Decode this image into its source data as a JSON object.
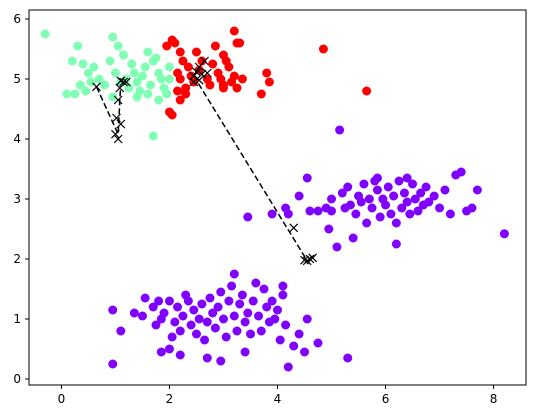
{
  "chart_data": {
    "type": "scatter",
    "title": "",
    "xlabel": "",
    "ylabel": "",
    "xlim": [
      -0.6,
      8.6
    ],
    "ylim": [
      -0.1,
      6.15
    ],
    "x_ticks": [
      0,
      2,
      4,
      6,
      8
    ],
    "y_ticks": [
      0,
      1,
      2,
      3,
      4,
      5,
      6
    ],
    "x_tick_labels": [
      "0",
      "2",
      "4",
      "6",
      "8"
    ],
    "y_tick_labels": [
      "0",
      "1",
      "2",
      "3",
      "4",
      "5",
      "6"
    ],
    "grid": false,
    "legend": "none",
    "series": [
      {
        "color": "#80ffb4",
        "marker": "circle",
        "points": [
          [
            -0.3,
            5.75
          ],
          [
            0.3,
            5.55
          ],
          [
            0.2,
            5.3
          ],
          [
            0.4,
            5.25
          ],
          [
            0.5,
            5.1
          ],
          [
            0.35,
            4.9
          ],
          [
            0.45,
            4.8
          ],
          [
            0.1,
            4.75
          ],
          [
            0.25,
            4.75
          ],
          [
            0.55,
            4.95
          ],
          [
            0.6,
            5.2
          ],
          [
            0.7,
            5.0
          ],
          [
            0.8,
            4.9
          ],
          [
            0.9,
            5.3
          ],
          [
            0.95,
            5.7
          ],
          [
            1.05,
            5.55
          ],
          [
            1.0,
            5.1
          ],
          [
            1.1,
            4.95
          ],
          [
            1.2,
            5.0
          ],
          [
            1.3,
            5.25
          ],
          [
            1.35,
            5.1
          ],
          [
            1.4,
            4.95
          ],
          [
            1.45,
            4.8
          ],
          [
            1.5,
            5.05
          ],
          [
            1.55,
            5.2
          ],
          [
            1.6,
            4.75
          ],
          [
            1.65,
            4.9
          ],
          [
            1.7,
            5.3
          ],
          [
            1.75,
            5.35
          ],
          [
            1.8,
            5.1
          ],
          [
            1.85,
            5.0
          ],
          [
            1.9,
            4.85
          ],
          [
            1.95,
            4.75
          ],
          [
            2.0,
            5.2
          ],
          [
            1.7,
            4.05
          ],
          [
            1.4,
            4.7
          ],
          [
            1.25,
            4.85
          ],
          [
            0.95,
            4.7
          ],
          [
            1.8,
            4.65
          ],
          [
            1.6,
            5.45
          ],
          [
            1.15,
            5.4
          ],
          [
            2.0,
            5.0
          ]
        ]
      },
      {
        "color": "#ff0000",
        "marker": "circle",
        "points": [
          [
            1.95,
            5.55
          ],
          [
            2.05,
            5.65
          ],
          [
            2.1,
            5.6
          ],
          [
            2.2,
            5.45
          ],
          [
            2.25,
            5.3
          ],
          [
            2.15,
            5.1
          ],
          [
            2.2,
            5.0
          ],
          [
            2.3,
            4.85
          ],
          [
            2.35,
            5.2
          ],
          [
            2.4,
            5.05
          ],
          [
            2.45,
            4.95
          ],
          [
            2.55,
            5.15
          ],
          [
            2.6,
            5.3
          ],
          [
            2.7,
            5.0
          ],
          [
            2.75,
            4.9
          ],
          [
            2.8,
            5.25
          ],
          [
            2.9,
            5.1
          ],
          [
            2.95,
            5.0
          ],
          [
            3.0,
            4.9
          ],
          [
            3.05,
            5.3
          ],
          [
            3.1,
            5.2
          ],
          [
            3.15,
            4.95
          ],
          [
            3.2,
            5.05
          ],
          [
            3.25,
            4.85
          ],
          [
            3.3,
            5.6
          ],
          [
            3.2,
            5.8
          ],
          [
            3.25,
            5.6
          ],
          [
            3.0,
            5.4
          ],
          [
            2.85,
            5.55
          ],
          [
            2.0,
            4.45
          ],
          [
            2.05,
            4.4
          ],
          [
            2.2,
            4.65
          ],
          [
            2.3,
            4.75
          ],
          [
            2.15,
            4.8
          ],
          [
            3.35,
            5.0
          ],
          [
            3.0,
            4.85
          ],
          [
            3.7,
            4.75
          ],
          [
            3.8,
            5.1
          ],
          [
            3.85,
            4.95
          ],
          [
            4.85,
            5.5
          ],
          [
            5.65,
            4.8
          ],
          [
            2.5,
            5.45
          ]
        ]
      },
      {
        "color": "#8000ff",
        "marker": "circle",
        "points": [
          [
            0.95,
            0.25
          ],
          [
            0.95,
            1.15
          ],
          [
            1.1,
            0.8
          ],
          [
            1.35,
            1.1
          ],
          [
            1.5,
            1.05
          ],
          [
            1.55,
            1.35
          ],
          [
            1.7,
            1.2
          ],
          [
            1.75,
            0.9
          ],
          [
            1.8,
            1.3
          ],
          [
            1.85,
            1.0
          ],
          [
            1.9,
            1.1
          ],
          [
            2.0,
            1.3
          ],
          [
            2.05,
            0.7
          ],
          [
            2.1,
            0.95
          ],
          [
            2.15,
            1.2
          ],
          [
            2.2,
            0.8
          ],
          [
            2.25,
            1.05
          ],
          [
            2.3,
            1.4
          ],
          [
            2.35,
            1.3
          ],
          [
            2.4,
            0.9
          ],
          [
            2.45,
            1.15
          ],
          [
            2.5,
            0.75
          ],
          [
            2.55,
            1.0
          ],
          [
            2.6,
            1.25
          ],
          [
            2.65,
            0.65
          ],
          [
            2.7,
            0.95
          ],
          [
            2.75,
            1.35
          ],
          [
            2.8,
            1.1
          ],
          [
            2.85,
            0.85
          ],
          [
            2.9,
            1.2
          ],
          [
            2.95,
            1.45
          ],
          [
            3.0,
            1.0
          ],
          [
            3.05,
            0.7
          ],
          [
            3.1,
            1.3
          ],
          [
            3.15,
            1.55
          ],
          [
            3.2,
            1.05
          ],
          [
            3.25,
            0.8
          ],
          [
            3.3,
            1.25
          ],
          [
            3.35,
            1.4
          ],
          [
            3.4,
            0.95
          ],
          [
            3.45,
            1.1
          ],
          [
            3.5,
            0.75
          ],
          [
            3.55,
            1.3
          ],
          [
            3.6,
            1.6
          ],
          [
            3.65,
            1.05
          ],
          [
            3.7,
            0.8
          ],
          [
            3.75,
            1.5
          ],
          [
            3.8,
            1.2
          ],
          [
            3.85,
            0.95
          ],
          [
            3.9,
            1.3
          ],
          [
            3.95,
            1.0
          ],
          [
            4.0,
            1.15
          ],
          [
            4.05,
            0.65
          ],
          [
            4.1,
            1.4
          ],
          [
            4.15,
            0.9
          ],
          [
            4.2,
            0.2
          ],
          [
            4.3,
            0.55
          ],
          [
            4.4,
            0.75
          ],
          [
            4.5,
            0.45
          ],
          [
            4.55,
            1.0
          ],
          [
            4.75,
            0.6
          ],
          [
            5.3,
            0.35
          ],
          [
            2.7,
            0.35
          ],
          [
            2.95,
            0.3
          ],
          [
            3.2,
            1.75
          ],
          [
            2.0,
            0.5
          ],
          [
            2.2,
            0.4
          ],
          [
            3.4,
            0.45
          ],
          [
            1.85,
            0.45
          ],
          [
            4.1,
            1.55
          ]
        ]
      },
      {
        "color": "#8000ff",
        "marker": "circle",
        "points": [
          [
            3.45,
            2.7
          ],
          [
            3.9,
            2.75
          ],
          [
            4.15,
            2.85
          ],
          [
            4.2,
            2.75
          ],
          [
            4.4,
            3.05
          ],
          [
            4.55,
            3.35
          ],
          [
            4.6,
            2.8
          ],
          [
            4.75,
            2.8
          ],
          [
            4.9,
            2.85
          ],
          [
            4.95,
            2.5
          ],
          [
            5.0,
            3.0
          ],
          [
            5.1,
            2.2
          ],
          [
            5.15,
            4.15
          ],
          [
            5.2,
            3.1
          ],
          [
            5.25,
            2.85
          ],
          [
            5.3,
            3.2
          ],
          [
            5.35,
            2.9
          ],
          [
            5.4,
            2.35
          ],
          [
            5.45,
            2.75
          ],
          [
            5.5,
            3.05
          ],
          [
            5.55,
            2.95
          ],
          [
            5.6,
            3.25
          ],
          [
            5.65,
            2.6
          ],
          [
            5.7,
            3.0
          ],
          [
            5.75,
            2.85
          ],
          [
            5.8,
            3.3
          ],
          [
            5.85,
            3.15
          ],
          [
            5.9,
            2.7
          ],
          [
            5.95,
            3.0
          ],
          [
            6.0,
            2.9
          ],
          [
            6.05,
            3.2
          ],
          [
            6.1,
            2.75
          ],
          [
            6.15,
            3.05
          ],
          [
            6.2,
            2.6
          ],
          [
            6.25,
            3.3
          ],
          [
            6.3,
            2.85
          ],
          [
            6.35,
            3.1
          ],
          [
            6.4,
            2.95
          ],
          [
            6.45,
            2.75
          ],
          [
            6.5,
            3.25
          ],
          [
            6.55,
            3.0
          ],
          [
            6.6,
            2.8
          ],
          [
            6.65,
            3.1
          ],
          [
            6.7,
            2.9
          ],
          [
            6.75,
            3.2
          ],
          [
            6.8,
            2.95
          ],
          [
            6.9,
            3.05
          ],
          [
            7.0,
            2.85
          ],
          [
            7.1,
            3.15
          ],
          [
            7.2,
            2.75
          ],
          [
            7.3,
            3.4
          ],
          [
            7.4,
            3.45
          ],
          [
            7.5,
            2.8
          ],
          [
            7.6,
            2.85
          ],
          [
            7.7,
            3.15
          ],
          [
            8.2,
            2.42
          ],
          [
            6.2,
            2.25
          ],
          [
            5.0,
            2.8
          ],
          [
            5.85,
            3.35
          ],
          [
            6.4,
            3.35
          ]
        ]
      },
      {
        "color": "#000000",
        "marker": "x",
        "points": [
          [
            0.65,
            4.87
          ],
          [
            1.0,
            4.08
          ],
          [
            1.02,
            4.35
          ],
          [
            1.05,
            4.65
          ],
          [
            1.08,
            4.85
          ],
          [
            1.1,
            4.97
          ],
          [
            1.15,
            4.95
          ],
          [
            1.1,
            4.25
          ],
          [
            1.05,
            4.0
          ],
          [
            1.2,
            4.95
          ],
          [
            2.45,
            5.05
          ],
          [
            2.5,
            5.12
          ],
          [
            2.55,
            5.2
          ],
          [
            2.6,
            5.08
          ],
          [
            2.65,
            5.3
          ],
          [
            2.7,
            5.1
          ],
          [
            2.55,
            4.98
          ],
          [
            2.45,
            4.95
          ],
          [
            4.3,
            2.52
          ],
          [
            4.55,
            1.97
          ],
          [
            4.6,
            2.0
          ],
          [
            4.65,
            2.02
          ],
          [
            4.5,
            1.98
          ]
        ]
      }
    ],
    "lines": [
      {
        "style": "dashed",
        "color": "#000000",
        "points": [
          [
            0.65,
            4.87
          ],
          [
            1.05,
            4.08
          ],
          [
            1.1,
            4.97
          ]
        ]
      },
      {
        "style": "dashed",
        "color": "#000000",
        "points": [
          [
            2.45,
            5.05
          ],
          [
            4.55,
            1.97
          ]
        ]
      }
    ]
  }
}
